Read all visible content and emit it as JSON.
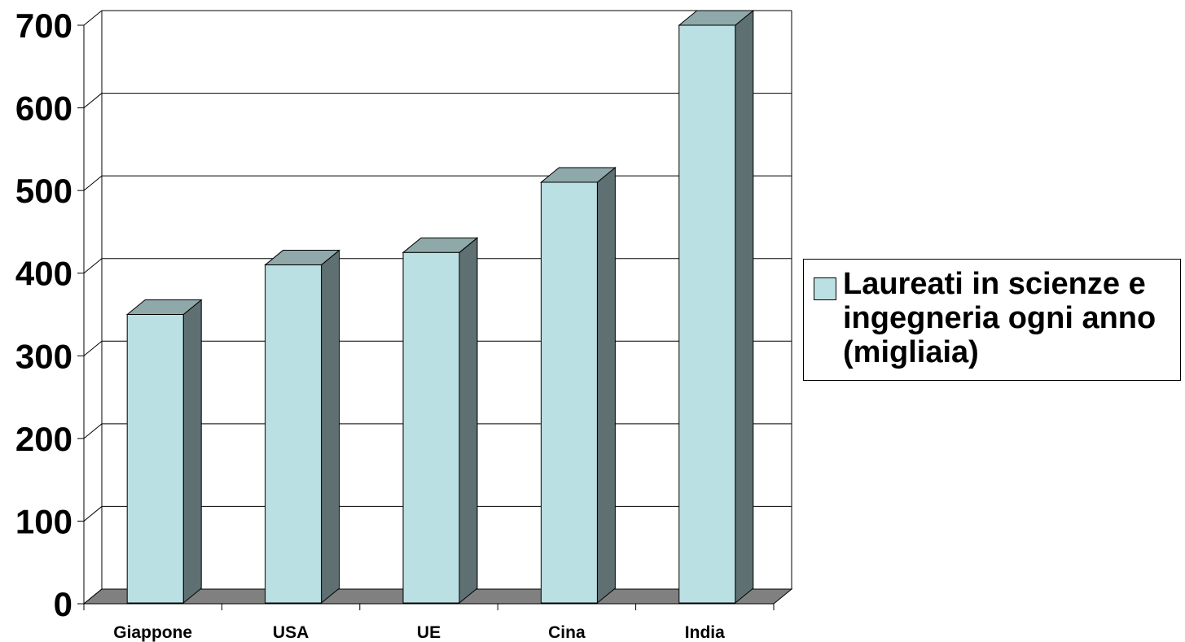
{
  "chart_data": {
    "type": "bar",
    "categories": [
      "Giappone",
      "USA",
      "UE",
      "Cina",
      "India"
    ],
    "series": [
      {
        "name": "Laureati in scienze e ingegneria ogni anno (migliaia)",
        "values": [
          350,
          410,
          425,
          510,
          700
        ]
      }
    ],
    "y_ticks": [
      "0",
      "100",
      "200",
      "300",
      "400",
      "500",
      "600",
      "700"
    ],
    "ylim": [
      0,
      700
    ],
    "grid": true,
    "legend_position": "right",
    "style": "3d-column",
    "legend_label_display": "Laureati in scienze e\ningegneria ogni anno\n(migliaia)",
    "colors": {
      "bar_front": "#BBE0E3",
      "bar_top": "#8FA8AA",
      "bar_side": "#5F7073",
      "floor": "#808080",
      "grid": "#000000"
    }
  }
}
